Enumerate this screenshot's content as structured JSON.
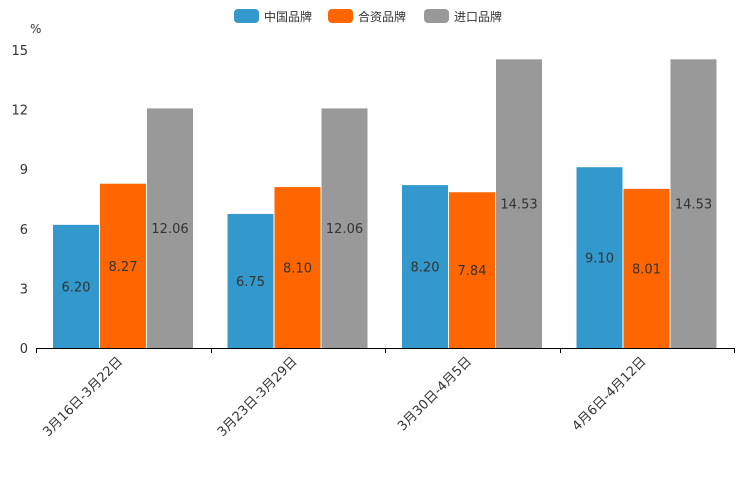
{
  "chart_data": {
    "type": "bar",
    "unit_label": "%",
    "categories": [
      "3月16日-3月22日",
      "3月23日-3月29日",
      "3月30日-4月5日",
      "4月6日-4月12日"
    ],
    "series": [
      {
        "name": "中国品牌",
        "color": "#3398cc",
        "values": [
          6.2,
          6.75,
          8.2,
          9.1
        ],
        "labels": [
          "6.20",
          "6.75",
          "8.20",
          "9.10"
        ]
      },
      {
        "name": "合资品牌",
        "color": "#ff6600",
        "values": [
          8.27,
          8.1,
          7.84,
          8.01
        ],
        "labels": [
          "8.27",
          "8.10",
          "7.84",
          "8.01"
        ]
      },
      {
        "name": "进口品牌",
        "color": "#999999",
        "values": [
          12.06,
          12.06,
          14.53,
          14.53
        ],
        "labels": [
          "12.06",
          "12.06",
          "14.53",
          "14.53"
        ]
      }
    ],
    "ylim": [
      0,
      15
    ],
    "yticks": [
      0,
      3,
      6,
      9,
      12,
      15
    ],
    "legend_position": "top-center",
    "grid": false
  }
}
